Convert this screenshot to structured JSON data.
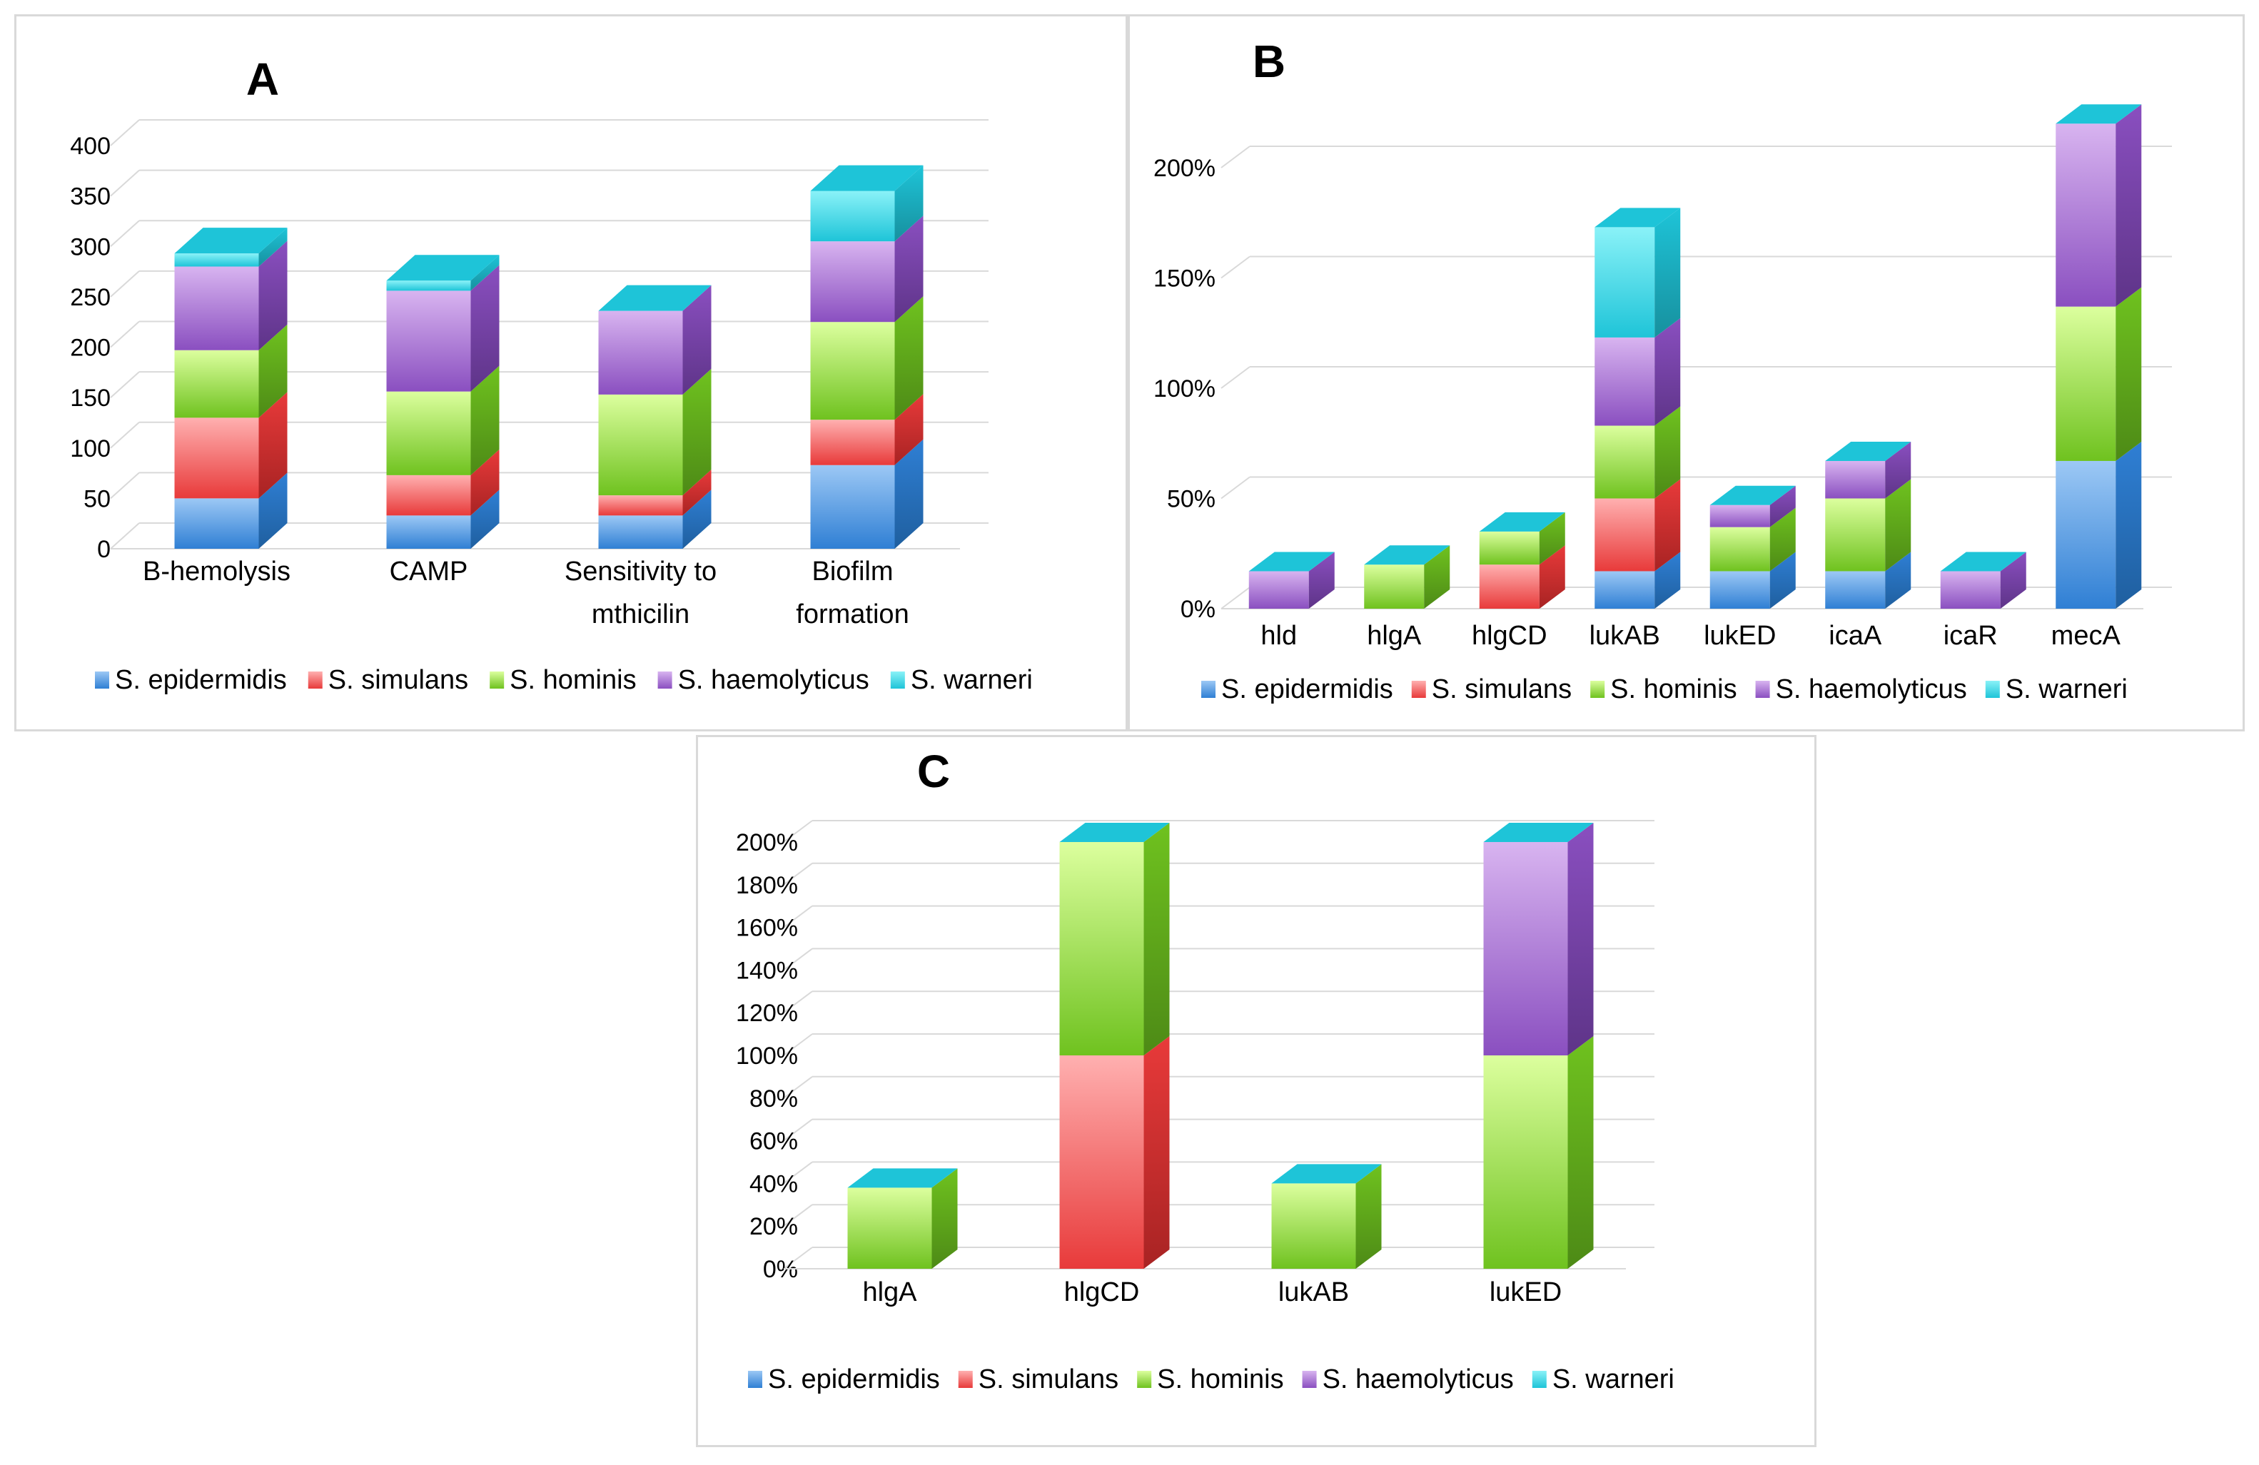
{
  "chart_data": [
    {
      "panel": "A",
      "type": "bar",
      "stacked": true,
      "title": "A",
      "categories": [
        "B-hemolysis",
        "CAMP",
        "Sensitivity to mthicilin",
        "Biofilm formation"
      ],
      "category_lines": [
        [
          "B-hemolysis"
        ],
        [
          "CAMP"
        ],
        [
          "Sensitivity to",
          "mthicilin"
        ],
        [
          "Biofilm",
          "formation"
        ]
      ],
      "series": [
        {
          "name": "S. epidermidis",
          "values": [
            50,
            33,
            33,
            83
          ]
        },
        {
          "name": "S. simulans",
          "values": [
            80,
            40,
            20,
            45
          ]
        },
        {
          "name": "S. hominis",
          "values": [
            67,
            83,
            100,
            97
          ]
        },
        {
          "name": "S. haemolyticus",
          "values": [
            83,
            100,
            83,
            80
          ]
        },
        {
          "name": "S. warneri",
          "values": [
            13,
            10,
            0,
            50
          ]
        }
      ],
      "ylim": [
        0,
        400
      ],
      "yticks": [
        "0",
        "50",
        "100",
        "150",
        "200",
        "250",
        "300",
        "350",
        "400"
      ],
      "xlabel": "",
      "ylabel": "",
      "grid": true,
      "legend": "bottom"
    },
    {
      "panel": "B",
      "type": "bar",
      "stacked": true,
      "title": "B",
      "categories": [
        "hld",
        "hlgA",
        "hlgCD",
        "lukAB",
        "lukED",
        "icaA",
        "icaR",
        "mecA"
      ],
      "series": [
        {
          "name": "S. epidermidis",
          "values": [
            0,
            0,
            0,
            17,
            17,
            17,
            0,
            67
          ]
        },
        {
          "name": "S. simulans",
          "values": [
            0,
            0,
            20,
            33,
            0,
            0,
            0,
            0
          ]
        },
        {
          "name": "S. hominis",
          "values": [
            0,
            20,
            15,
            33,
            20,
            33,
            0,
            70
          ]
        },
        {
          "name": "S. haemolyticus",
          "values": [
            17,
            0,
            0,
            40,
            10,
            17,
            17,
            83
          ]
        },
        {
          "name": "S. warneri",
          "values": [
            0,
            0,
            0,
            50,
            0,
            0,
            0,
            0
          ]
        }
      ],
      "ylim": [
        0,
        200
      ],
      "yticks": [
        "0%",
        "50%",
        "100%",
        "150%",
        "200%"
      ],
      "xlabel": "",
      "ylabel": "",
      "grid": true,
      "legend": "bottom"
    },
    {
      "panel": "C",
      "type": "bar",
      "stacked": true,
      "title": "C",
      "categories": [
        "hlgA",
        "hlgCD",
        "lukAB",
        "lukED"
      ],
      "series": [
        {
          "name": "S. epidermidis",
          "values": [
            0,
            0,
            0,
            0
          ]
        },
        {
          "name": "S. simulans",
          "values": [
            0,
            100,
            0,
            0
          ]
        },
        {
          "name": "S. hominis",
          "values": [
            38,
            100,
            40,
            100
          ]
        },
        {
          "name": "S. haemolyticus",
          "values": [
            0,
            0,
            0,
            100
          ]
        },
        {
          "name": "S. warneri",
          "values": [
            0,
            0,
            0,
            0
          ]
        }
      ],
      "ylim": [
        0,
        200
      ],
      "yticks": [
        "0%",
        "20%",
        "40%",
        "60%",
        "80%",
        "100%",
        "120%",
        "140%",
        "160%",
        "180%",
        "200%"
      ],
      "xlabel": "",
      "ylabel": "",
      "grid": true,
      "legend": "bottom"
    }
  ],
  "colors": {
    "S. epidermidis": [
      "#9cc8f5",
      "#2f7fd4",
      "#1f5f9f"
    ],
    "S. simulans": [
      "#ffb0b0",
      "#e83a3a",
      "#a82323"
    ],
    "S. hominis": [
      "#dcff9e",
      "#6fc21f",
      "#4d8a16"
    ],
    "S. haemolyticus": [
      "#d8b4f0",
      "#8a4fc0",
      "#5e3488"
    ],
    "S. warneri": [
      "#8af2f8",
      "#1ec4d8",
      "#17909e"
    ]
  },
  "grid_color": "#d9d9d9"
}
